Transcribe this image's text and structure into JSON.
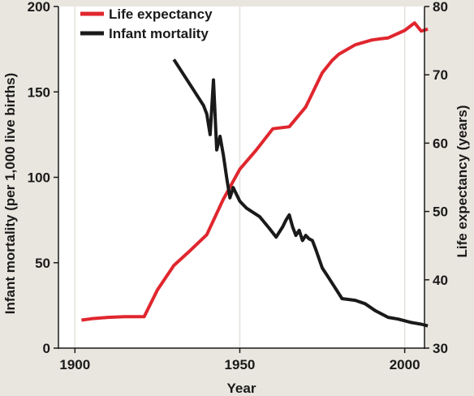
{
  "chart_data": {
    "type": "line",
    "title": "",
    "xlabel": "Year",
    "ylabel_left": "Infant mortality (per 1,000 live births)",
    "ylabel_right": "Life expectancy (years)",
    "xlim": [
      1895,
      2006
    ],
    "ylim_left": [
      0,
      200
    ],
    "ylim_right": [
      30,
      80
    ],
    "x_ticks": [
      1900,
      1950,
      2000
    ],
    "y_ticks_left": [
      0,
      50,
      100,
      150,
      200
    ],
    "y_ticks_right": [
      30,
      40,
      50,
      60,
      70,
      80
    ],
    "grid": true,
    "legend_position": "top-left",
    "series": [
      {
        "name": "Life expectancy",
        "axis": "right",
        "color": "#e0262e",
        "x": [
          1902,
          1905,
          1910,
          1915,
          1920,
          1921,
          1925,
          1930,
          1935,
          1940,
          1945,
          1950,
          1955,
          1960,
          1965,
          1970,
          1975,
          1978,
          1980,
          1985,
          1990,
          1993,
          1995,
          2000,
          2003,
          2005,
          2007
        ],
        "y": [
          34.1,
          34.3,
          34.5,
          34.6,
          34.6,
          34.6,
          38.5,
          42.1,
          44.3,
          46.6,
          51.8,
          56.2,
          59.0,
          62.1,
          62.4,
          65.3,
          70.3,
          72.1,
          73.0,
          74.4,
          75.1,
          75.3,
          75.4,
          76.5,
          77.6,
          76.4,
          76.7
        ]
      },
      {
        "name": "Infant mortality",
        "axis": "left",
        "color": "#1a1a1a",
        "x": [
          1930,
          1933,
          1936,
          1939,
          1940,
          1941,
          1942,
          1943,
          1944,
          1945,
          1946,
          1947,
          1948,
          1950,
          1952,
          1956,
          1959,
          1961,
          1963,
          1964,
          1965,
          1966,
          1967,
          1968,
          1969,
          1970,
          1971,
          1972,
          1973,
          1975,
          1977,
          1979,
          1981,
          1985,
          1988,
          1991,
          1995,
          1998,
          2000,
          2002,
          2005,
          2007
        ],
        "y": [
          169,
          160,
          151,
          142,
          137,
          125,
          157,
          116,
          124,
          113,
          100,
          88,
          94,
          86,
          82,
          77,
          70,
          65,
          71,
          75,
          78,
          71,
          66,
          69,
          63,
          66,
          64,
          63,
          58,
          47,
          41,
          35,
          29,
          28,
          26,
          22,
          18,
          17,
          16,
          15,
          14,
          13
        ]
      }
    ]
  }
}
